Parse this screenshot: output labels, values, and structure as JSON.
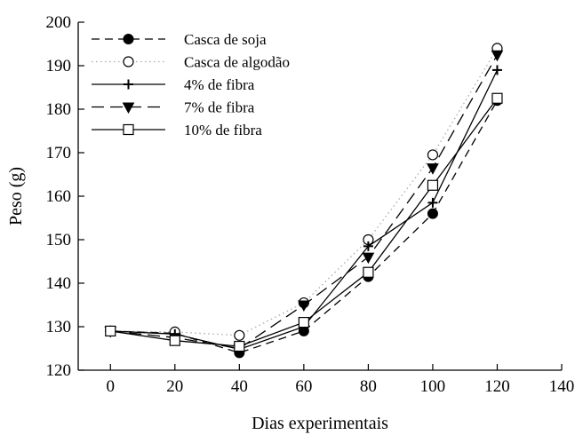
{
  "chart_data": {
    "type": "line",
    "xlabel": "Dias experimentais",
    "ylabel": "Peso (g)",
    "xlim": [
      -10,
      140
    ],
    "ylim": [
      120,
      200
    ],
    "x_ticks": [
      0,
      20,
      40,
      60,
      80,
      100,
      120,
      140
    ],
    "y_ticks": [
      120,
      130,
      140,
      150,
      160,
      170,
      180,
      190,
      200
    ],
    "x_tick_labels": [
      "0",
      "20",
      "40",
      "60",
      "80",
      "100",
      "120",
      "140"
    ],
    "y_tick_labels": [
      "120",
      "130",
      "140",
      "150",
      "160",
      "170",
      "180",
      "190",
      "200"
    ],
    "grid": false,
    "legend_position": "top-left",
    "x": [
      0,
      20,
      40,
      60,
      80,
      100,
      120
    ],
    "series": [
      {
        "name": "Casca de soja",
        "marker": "filled-circle",
        "line_style": "dashed",
        "color": "#000000",
        "values": [
          129,
          128.5,
          124,
          129,
          141.5,
          156,
          182
        ]
      },
      {
        "name": "Casca de algodão",
        "marker": "open-circle",
        "line_style": "dotted",
        "color": "#000000",
        "values": [
          129,
          128.8,
          128,
          135.5,
          150,
          169.5,
          194
        ]
      },
      {
        "name": "4% de fibra",
        "marker": "plus",
        "line_style": "solid",
        "color": "#000000",
        "values": [
          129,
          128.3,
          124.8,
          130,
          148.5,
          158.5,
          189
        ]
      },
      {
        "name": "7% de fibra",
        "marker": "filled-triangle-down",
        "line_style": "long-dashed",
        "color": "#000000",
        "values": [
          129,
          127.5,
          125,
          135,
          146,
          166.5,
          192.5
        ]
      },
      {
        "name": "10% de fibra",
        "marker": "open-square",
        "line_style": "solid",
        "color": "#000000",
        "values": [
          129,
          126.8,
          125.5,
          131,
          142.5,
          162.5,
          182.5
        ]
      }
    ]
  }
}
